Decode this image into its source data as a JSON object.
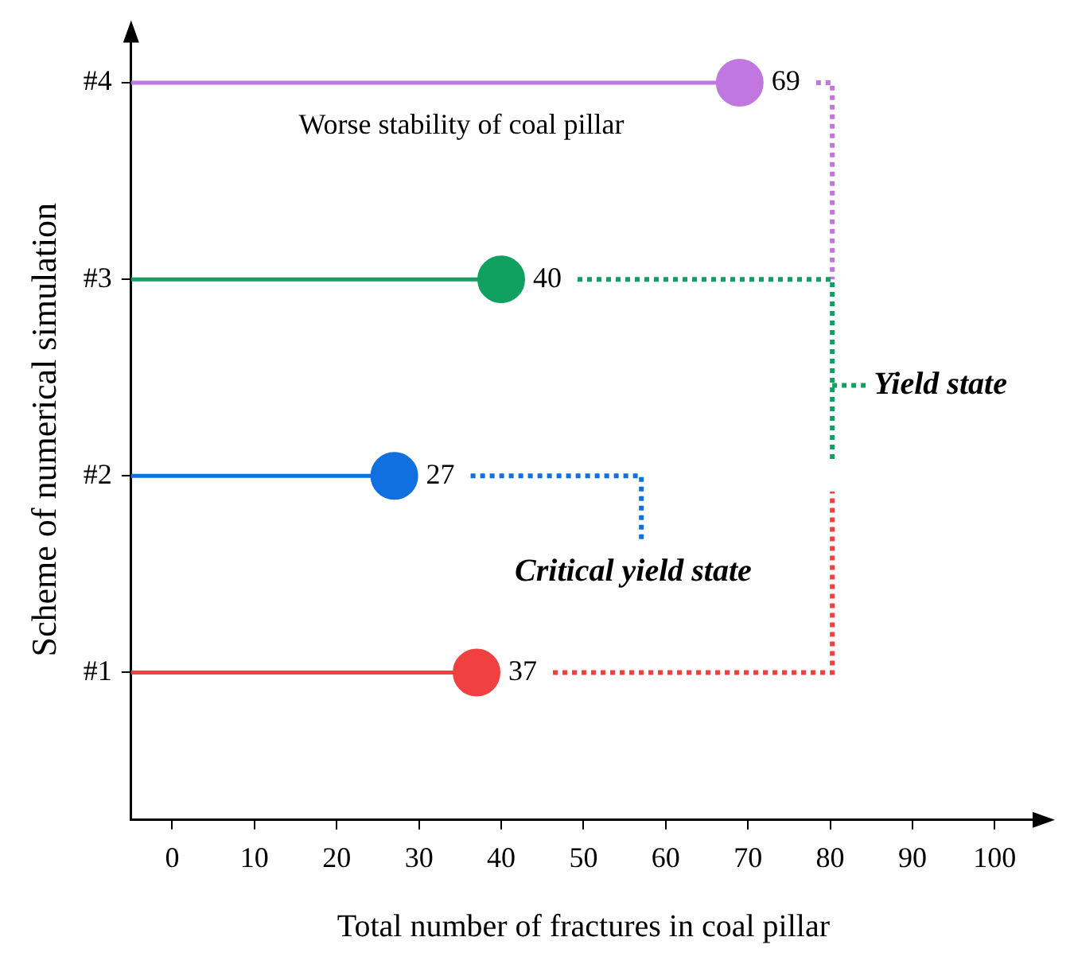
{
  "chart_data": {
    "type": "lollipop",
    "orientation": "horizontal",
    "xlabel": "Total number of fractures in coal pillar",
    "ylabel": "Scheme of numerical simulation",
    "categories": [
      "#4",
      "#3",
      "#2",
      "#1"
    ],
    "values": [
      69,
      40,
      27,
      37
    ],
    "colors": [
      "#c077e0",
      "#10a060",
      "#1070e0",
      "#f04040"
    ],
    "xlim": [
      -5,
      105
    ],
    "xticks": [
      0,
      10,
      20,
      30,
      40,
      50,
      60,
      70,
      80,
      90,
      100
    ],
    "data_labels": true,
    "marker": "circle",
    "grid": false,
    "legend": false,
    "annotations": [
      "Worse stability of coal pillar",
      "Yield state",
      "Critical yield state"
    ]
  }
}
